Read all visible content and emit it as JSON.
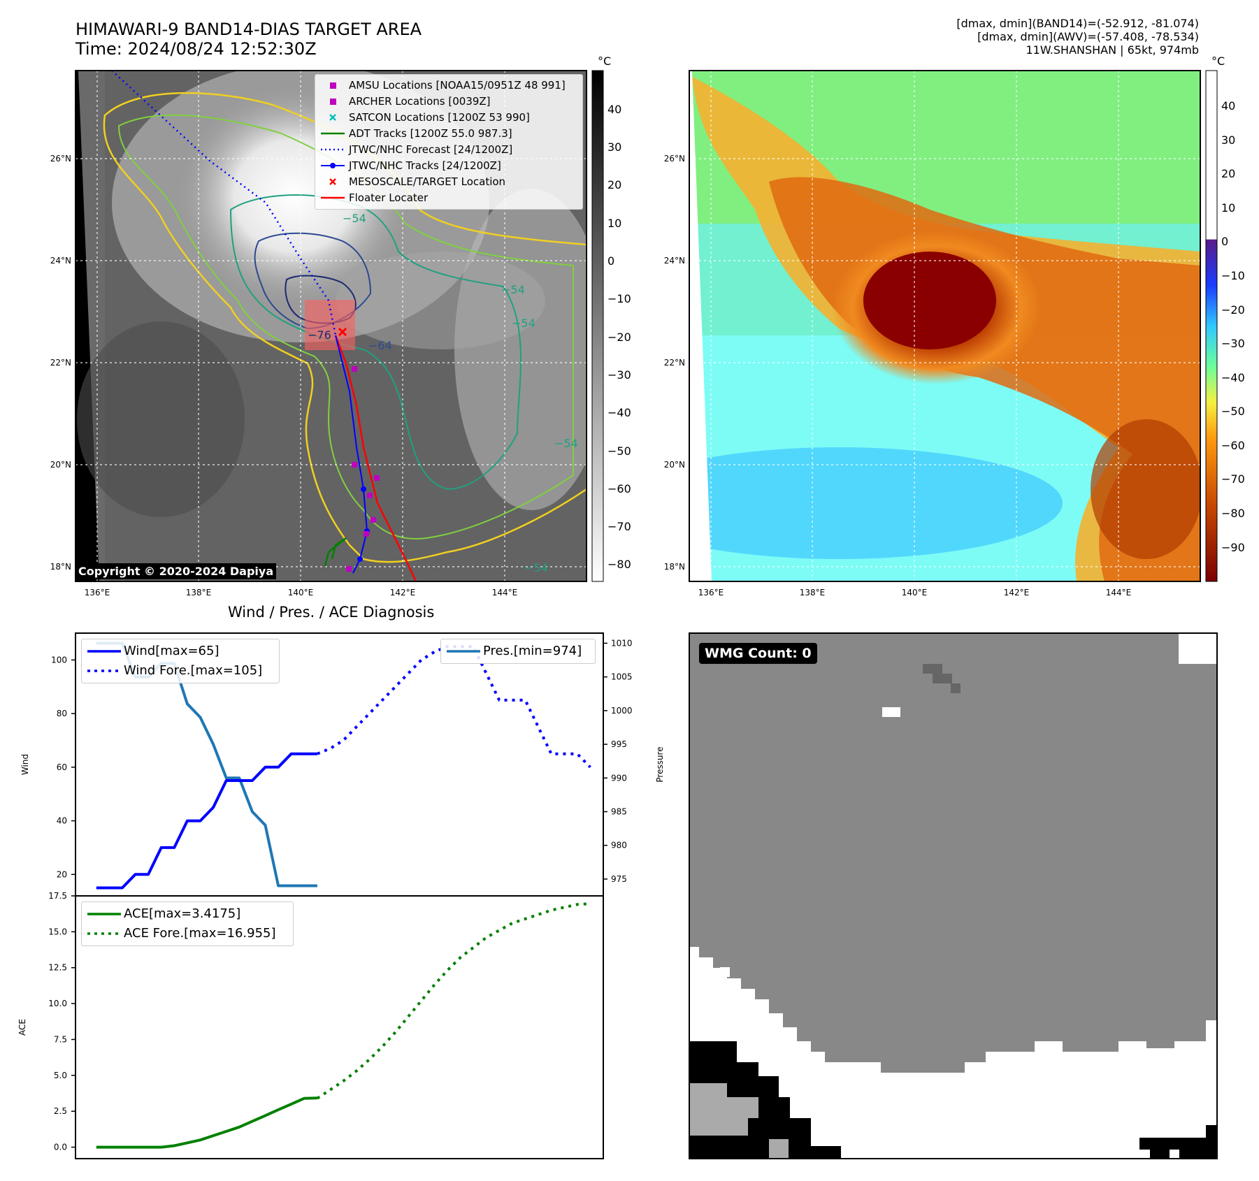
{
  "header": {
    "title_line1": "HIMAWARI-9 BAND14-DIAS TARGET AREA",
    "title_line2": "Time: 2024/08/24 12:52:30Z",
    "meta_line1": "[dmax, dmin](BAND14)=(-52.912, -81.074)",
    "meta_line2": "[dmax, dmin](AWV)=(-57.408, -78.534)",
    "meta_line3": "11W.SHANSHAN | 65kt, 974mb"
  },
  "map": {
    "lat_labels": [
      "26°N",
      "24°N",
      "22°N",
      "20°N",
      "18°N"
    ],
    "lon_labels": [
      "136°E",
      "138°E",
      "140°E",
      "142°E",
      "144°E"
    ],
    "colorbar_unit": "°C",
    "colorbar_ticks": [
      "40",
      "30",
      "20",
      "10",
      "0",
      "−10",
      "−20",
      "−30",
      "−40",
      "−50",
      "−60",
      "−70",
      "−80"
    ],
    "colorbar2_ticks": [
      "40",
      "30",
      "20",
      "10",
      "0",
      "−10",
      "−20",
      "−30",
      "−40",
      "−50",
      "−60",
      "−70",
      "−80",
      "−90"
    ],
    "contour_labels": [
      "−54",
      "−54",
      "−54",
      "−54",
      "−54",
      "−64",
      "−76",
      "−54"
    ],
    "copyright": "Copyright © 2020-2024 Dapiya",
    "legend": [
      {
        "label": "AMSU Locations [NOAA15/0951Z 48 991]",
        "color": "#c000c0",
        "symbol": "square"
      },
      {
        "label": "ARCHER Locations [0039Z]",
        "color": "#c000c0",
        "symbol": "square"
      },
      {
        "label": "SATCON Locations [1200Z 53 990]",
        "color": "#00c0c0",
        "symbol": "x"
      },
      {
        "label": "ADT Tracks [1200Z 55.0 987.3]",
        "color": "#008000",
        "symbol": "line"
      },
      {
        "label": "JTWC/NHC Forecast [24/1200Z]",
        "color": "#0000ff",
        "symbol": "dotted"
      },
      {
        "label": "JTWC/NHC Tracks [24/1200Z]",
        "color": "#0000ff",
        "symbol": "line-dot"
      },
      {
        "label": "MESOSCALE/TARGET Location",
        "color": "#ff0000",
        "symbol": "x"
      },
      {
        "label": "Floater Locater",
        "color": "#ff0000",
        "symbol": "line"
      }
    ]
  },
  "diagnosis": {
    "title": "Wind / Pres. / ACE Diagnosis",
    "wind_ylabel": "Wind",
    "pressure_ylabel": "Pressure",
    "ace_ylabel": "ACE",
    "wind_ticks": [
      "20",
      "40",
      "60",
      "80",
      "100"
    ],
    "pressure_ticks": [
      "975",
      "980",
      "985",
      "990",
      "995",
      "1000",
      "1005",
      "1010"
    ],
    "ace_ticks": [
      "0.0",
      "2.5",
      "5.0",
      "7.5",
      "10.0",
      "12.5",
      "15.0",
      "17.5"
    ],
    "legend_wind": "Wind[max=65]",
    "legend_wind_fore": "Wind Fore.[max=105]",
    "legend_pres": "Pres.[min=974]",
    "legend_ace": "ACE[max=3.4175]",
    "legend_ace_fore": "ACE Fore.[max=16.955]"
  },
  "wmg": {
    "label": "WMG Count: 0"
  },
  "chart_data": [
    {
      "type": "line",
      "series": [
        {
          "name": "Wind[max=65]",
          "x": [
            0,
            1,
            2,
            3,
            4,
            5,
            6,
            7,
            8,
            9,
            10,
            11,
            12,
            13,
            14,
            15,
            16,
            17
          ],
          "values": [
            15,
            15,
            15,
            20,
            20,
            30,
            30,
            40,
            40,
            45,
            55,
            55,
            55,
            60,
            60,
            65,
            65,
            65
          ]
        },
        {
          "name": "Wind Fore.[max=105]",
          "x": [
            17,
            18,
            19,
            20,
            21,
            22,
            23,
            24,
            25,
            26,
            27,
            28,
            29,
            30,
            31,
            32,
            33,
            34,
            35,
            36,
            37,
            38
          ],
          "values": [
            65,
            67,
            70,
            75,
            80,
            85,
            90,
            95,
            100,
            103,
            105,
            105,
            105,
            95,
            85,
            85,
            85,
            75,
            65,
            65,
            65,
            60
          ]
        }
      ],
      "ylabel": "Wind",
      "ylim": [
        12,
        110
      ]
    },
    {
      "type": "line",
      "series": [
        {
          "name": "Pres.[min=974]",
          "x": [
            0,
            1,
            2,
            3,
            4,
            5,
            6,
            7,
            8,
            9,
            10,
            11,
            12,
            13,
            14,
            15,
            16,
            17
          ],
          "values": [
            1010,
            1010,
            1010,
            1005,
            1005,
            1007,
            1007,
            1001,
            999,
            995,
            990,
            990,
            985,
            983,
            974,
            974,
            974,
            974
          ]
        }
      ],
      "ylabel": "Pressure",
      "ylim": [
        972.5,
        1011.5
      ]
    },
    {
      "type": "line",
      "series": [
        {
          "name": "ACE[max=3.4175]",
          "x": [
            0,
            1,
            2,
            3,
            4,
            5,
            6,
            7,
            8,
            9,
            10,
            11,
            12,
            13,
            14,
            15,
            16,
            17
          ],
          "values": [
            0,
            0,
            0,
            0,
            0,
            0,
            0.1,
            0.3,
            0.5,
            0.8,
            1.1,
            1.4,
            1.8,
            2.2,
            2.6,
            3.0,
            3.4,
            3.4175
          ]
        },
        {
          "name": "ACE Fore.[max=16.955]",
          "x": [
            17,
            18,
            19,
            20,
            21,
            22,
            23,
            24,
            25,
            26,
            27,
            28,
            29,
            30,
            31,
            32,
            33,
            34,
            35,
            36,
            37,
            38
          ],
          "values": [
            3.4,
            4.0,
            4.6,
            5.3,
            6.1,
            7.0,
            8.0,
            9.1,
            10.2,
            11.3,
            12.3,
            13.2,
            13.9,
            14.6,
            15.1,
            15.6,
            15.9,
            16.2,
            16.5,
            16.7,
            16.9,
            16.955
          ]
        }
      ],
      "ylabel": "ACE",
      "ylim": [
        -0.8,
        17.5
      ]
    }
  ]
}
